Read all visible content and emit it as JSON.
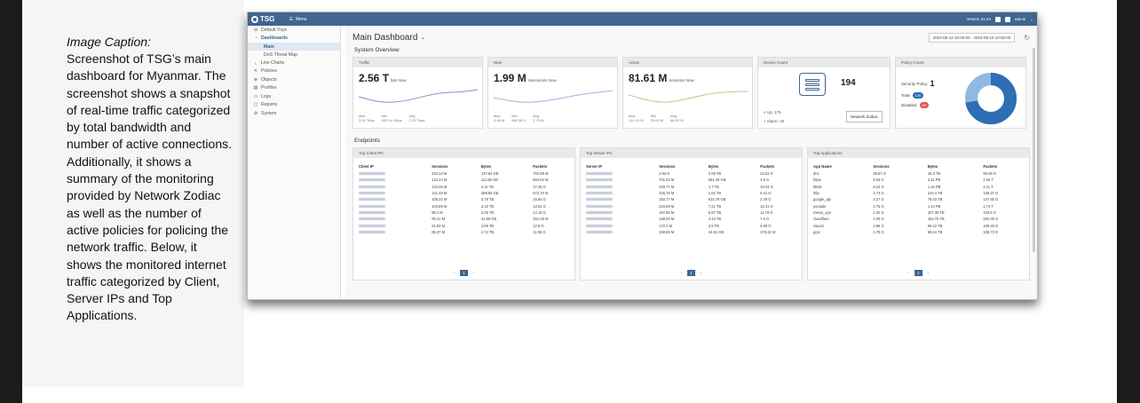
{
  "caption": {
    "title": "Image Caption:",
    "body": "Screenshot of TSG’s main dashboard for Myanmar. The screenshot shows a snapshot of real-time traffic categorized by total bandwidth and number of active connections. Additionally, it shows a summary of the monitoring provided by Network Zodiac as well as the number of active policies for policing the network traffic.  Below, it shows the monitored internet traffic categorized by Client, Server IPs and Top Applications."
  },
  "app": {
    "logo": "TSG",
    "menu_label": "Menu",
    "version": "Version 24.02",
    "user": "admin"
  },
  "sidebar": {
    "items": [
      {
        "label": "Default Vsys",
        "icon": "database-icon"
      },
      {
        "label": "Dashboards",
        "icon": "dashboard-icon"
      },
      {
        "label": "Live Charts",
        "icon": "chart-icon"
      },
      {
        "label": "Policies",
        "icon": "policy-icon"
      },
      {
        "label": "Objects",
        "icon": "objects-icon"
      },
      {
        "label": "Profiles",
        "icon": "profile-icon"
      },
      {
        "label": "Logs",
        "icon": "logs-icon"
      },
      {
        "label": "Reports",
        "icon": "reports-icon"
      },
      {
        "label": "System",
        "icon": "system-icon"
      }
    ],
    "sub_items": [
      "Main",
      "DoS Threat Map"
    ]
  },
  "header": {
    "title": "Main Dashboard",
    "subtitle": "",
    "date_range": "2024-05-12 10:00:00  -  2024-05-13 10:00:00"
  },
  "overview": {
    "label": "System Overview",
    "traffic": {
      "header": "Traffic",
      "value": "2.56 T",
      "unit": "bps Now",
      "max_label": "Max",
      "max": "3.51 Tbps",
      "min_label": "Min",
      "min": "532.14 Gbps",
      "avg_label": "Avg",
      "avg": "2.23 Tbps"
    },
    "new": {
      "header": "New",
      "value": "1.99 M",
      "unit": "Sessions/s Now",
      "max_label": "Max",
      "max": "3.46 M",
      "min_label": "Min",
      "min": "660.36 K",
      "avg_label": "Avg",
      "avg": "1.79 M"
    },
    "active": {
      "header": "Active",
      "value": "81.61 M",
      "unit": "Sessions Now",
      "max_label": "Max",
      "max": "121.41 M",
      "min_label": "Min",
      "min": "20.63 M",
      "avg_label": "Avg",
      "avg": "66.92 M"
    },
    "device": {
      "header": "Device Count",
      "count": "194",
      "up": "Up: 175",
      "alarm": "Alarm: 19",
      "button": "Network Zodiac"
    },
    "policy": {
      "header": "Policy Count",
      "security_label": "Security Policy",
      "security_value": "1",
      "total_label": "Total",
      "total_value": "120",
      "disabled_label": "Disabled",
      "disabled_value": "69"
    }
  },
  "endpoints": {
    "label": "Endpoints",
    "client": {
      "header": "Top Client IPs",
      "columns": [
        "Client IP",
        "Sessions",
        "Bytes",
        "Packets"
      ],
      "rows": [
        [
          "",
          "234.12 M",
          "137.84 GB",
          "702.59 M"
        ],
        [
          "",
          "124.44 M",
          "111.88 GB",
          "684.04 M"
        ],
        [
          "",
          "122.06 M",
          "4.11 TB",
          "17.46 G"
        ],
        [
          "",
          "121.48 M",
          "489.85 GB",
          "672.73 M"
        ],
        [
          "",
          "105.31 M",
          "3.78 TB",
          "15.84 G"
        ],
        [
          "",
          "104.89 M",
          "3.16 TB",
          "13.51 G"
        ],
        [
          "",
          "96.2 M",
          "3.25 TB",
          "14.19 G"
        ],
        [
          "",
          "95.41 M",
          "41.69 GB",
          "331.19 M"
        ],
        [
          "",
          "91.83 M",
          "2.88 TB",
          "12.8 G"
        ],
        [
          "",
          "85.37 M",
          "2.74 TB",
          "11.95 G"
        ]
      ],
      "page": "1"
    },
    "server": {
      "header": "Top Server IPs",
      "columns": [
        "Server IP",
        "Sessions",
        "Bytes",
        "Packets"
      ],
      "rows": [
        [
          "",
          "3.93 G",
          "2.99 TB",
          "23.52 G"
        ],
        [
          "",
          "701.02 M",
          "551.49 GB",
          "2.9 G"
        ],
        [
          "",
          "329.77 M",
          "1.7 TB",
          "10.04 G"
        ],
        [
          "",
          "325.76 M",
          "1.82 TB",
          "6.41 G"
        ],
        [
          "",
          "293.77 M",
          "610.78 GB",
          "2.49 G"
        ],
        [
          "",
          "216.59 M",
          "7.21 TB",
          "12.41 G"
        ],
        [
          "",
          "197.85 M",
          "6.87 TB",
          "11.79 G"
        ],
        [
          "",
          "188.05 M",
          "4.42 TB",
          "7.6 G"
        ],
        [
          "",
          "172.1 M",
          "3.8 TB",
          "6.69 G"
        ],
        [
          "",
          "159.55 M",
          "24.51 GB",
          "370.32 M"
        ]
      ],
      "page": "1"
    },
    "apps": {
      "header": "Top Applications",
      "columns": [
        "App Name",
        "Sessions",
        "Bytes",
        "Packets"
      ],
      "rows": [
        [
          "dns",
          "35.57 G",
          "16.3 TB",
          "80.09 G"
        ],
        [
          "https",
          "9.53 G",
          "2.11 PB",
          "2.06 T"
        ],
        [
          "tiktok",
          "8.24 G",
          "1.34 PB",
          "2.11 T"
        ],
        [
          "http",
          "3.73 G",
          "224.4 TB",
          "249.37 G"
        ],
        [
          "google_api",
          "3.27 G",
          "79.43 TB",
          "147.85 G"
        ],
        [
          "youtube",
          "2.75 G",
          "1.44 PB",
          "1.74 T"
        ],
        [
          "melon_vpn",
          "2.32 G",
          "207.39 TB",
          "343.5 G"
        ],
        [
          "cloudflare",
          "2.29 G",
          "154.75 TB",
          "283.35 G"
        ],
        [
          "xiaomi",
          "1.86 G",
          "69.12 TB",
          "109.48 G"
        ],
        [
          "grpc",
          "1.79 G",
          "59.24 TB",
          "105.73 G"
        ]
      ],
      "page": "1"
    }
  },
  "colors": {
    "topbar": "#3f6590",
    "accent": "#3f6590",
    "donut_main": "#2f6db5",
    "donut_light": "#8fb8e3",
    "traffic_line": "#9a86c9",
    "new_line": "#b8a9d9",
    "active_line": "#c8c08a"
  }
}
